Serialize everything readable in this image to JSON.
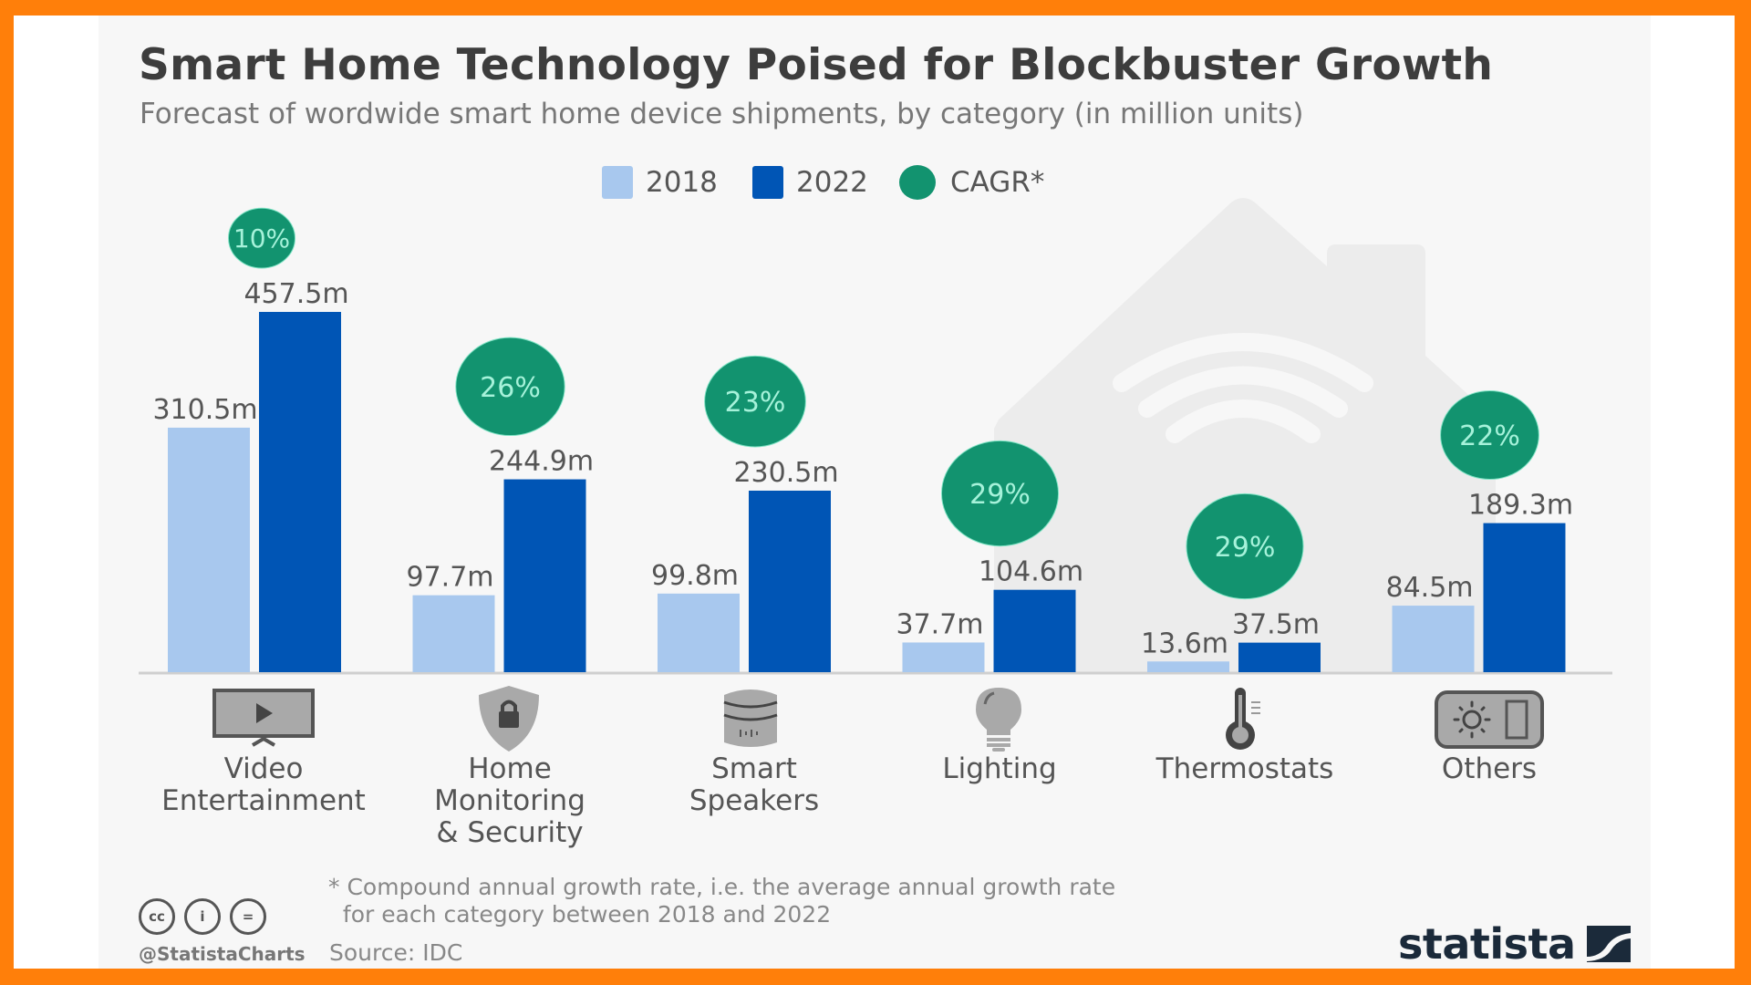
{
  "header": {
    "title": "Smart Home Technology Poised for Blockbuster Growth",
    "subtitle": "Forecast of wordwide smart home device shipments, by category (in million units)"
  },
  "legend": [
    {
      "label": "2018",
      "shape": "square",
      "color": "#a8c8ee"
    },
    {
      "label": "2022",
      "shape": "square",
      "color": "#0055b5"
    },
    {
      "label": "CAGR*",
      "shape": "circle",
      "color": "#12936f"
    }
  ],
  "colors": {
    "series_2018": "#a8c8ee",
    "series_2022": "#0055b5",
    "cagr": "#12936f",
    "cagr_text": "#a6f2da",
    "label_text": "#555555",
    "axis": "#cccccc",
    "background_house": "#ececec",
    "frame": "#ff7f0a"
  },
  "chart_data": {
    "type": "bar",
    "title": "Smart Home Technology Poised for Blockbuster Growth",
    "subtitle": "Forecast of wordwide smart home device shipments, by category (in million units)",
    "xlabel": "",
    "ylabel": "",
    "ylim": [
      0,
      500
    ],
    "grid": false,
    "legend_position": "top-center",
    "categories": [
      "Video\nEntertainment",
      "Home\nMonitoring\n& Security",
      "Smart\nSpeakers",
      "Lighting",
      "Thermostats",
      "Others"
    ],
    "category_icons": [
      "tv-play-icon",
      "shield-lock-icon",
      "smart-speaker-icon",
      "light-bulb-icon",
      "thermometer-icon",
      "smart-switch-icon"
    ],
    "series": [
      {
        "name": "2018",
        "values": [
          310.5,
          97.7,
          99.8,
          37.7,
          13.6,
          84.5
        ],
        "labels": [
          "310.5m",
          "97.7m",
          "99.8m",
          "37.7m",
          "13.6m",
          "84.5m"
        ]
      },
      {
        "name": "2022",
        "values": [
          457.5,
          244.9,
          230.5,
          104.6,
          37.5,
          189.3
        ],
        "labels": [
          "457.5m",
          "244.9m",
          "230.5m",
          "104.6m",
          "37.5m",
          "189.3m"
        ]
      },
      {
        "name": "CAGR*",
        "values": [
          10,
          26,
          23,
          29,
          29,
          22
        ],
        "labels": [
          "10%",
          "26%",
          "23%",
          "29%",
          "29%",
          "22%"
        ]
      }
    ]
  },
  "footer": {
    "footnote": "* Compound annual growth rate, i.e. the average annual growth rate\n  for each category between 2018 and 2022",
    "source": "Source: IDC",
    "handle": "@StatistaCharts",
    "license_icons": [
      "cc-icon",
      "attribution-icon",
      "no-derivatives-icon"
    ],
    "license_glyphs": [
      "cc",
      "i",
      "="
    ],
    "brand": "statista"
  }
}
